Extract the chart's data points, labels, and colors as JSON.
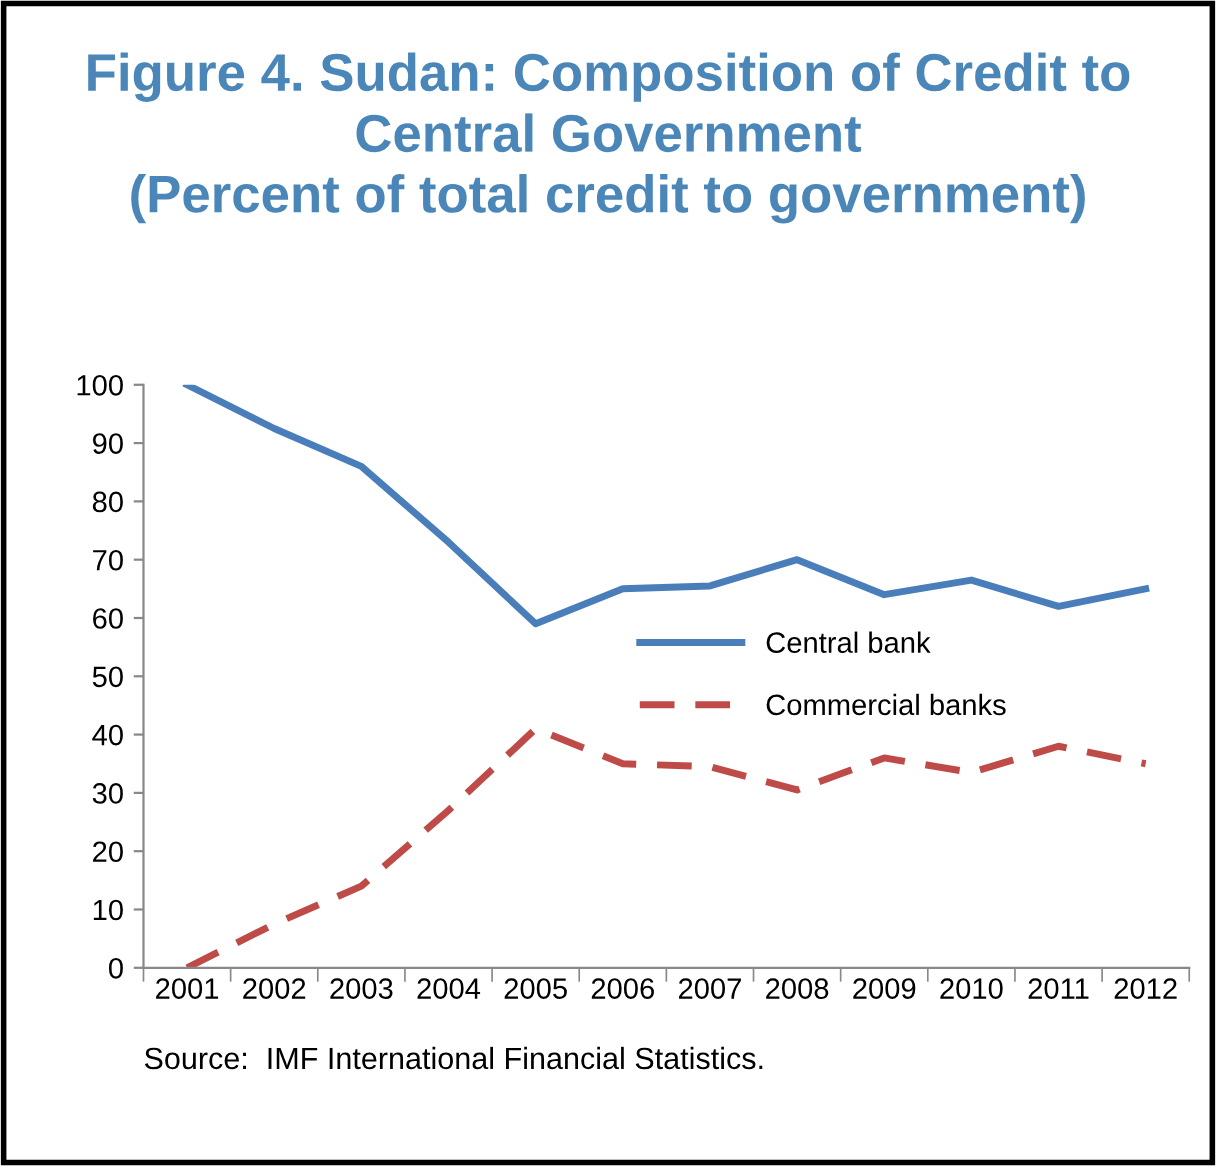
{
  "chart_data": {
    "type": "line",
    "title": "Figure 4. Sudan: Composition of Credit to Central Government\n(Percent of total credit to government)",
    "categories": [
      "2001",
      "2002",
      "2003",
      "2004",
      "2005",
      "2006",
      "2007",
      "2008",
      "2009",
      "2010",
      "2011",
      "2012"
    ],
    "series": [
      {
        "name": "Central bank",
        "color": "#4a7ebb",
        "line_style": "solid",
        "values": [
          100,
          92.5,
          86,
          73,
          59,
          65,
          65.5,
          70,
          64,
          66.5,
          62,
          65
        ]
      },
      {
        "name": "Commercial banks",
        "color": "#be4b48",
        "line_style": "dashed",
        "values": [
          0,
          7.5,
          14,
          27,
          41,
          35,
          34.5,
          30.5,
          36,
          33.5,
          38,
          35
        ]
      }
    ],
    "ylim": [
      0,
      100
    ],
    "yticks": [
      0,
      10,
      20,
      30,
      40,
      50,
      60,
      70,
      80,
      90,
      100
    ],
    "grid": false,
    "legend": "center",
    "marker": "none",
    "annotations": [
      "Source:  IMF International Financial Statistics."
    ]
  }
}
